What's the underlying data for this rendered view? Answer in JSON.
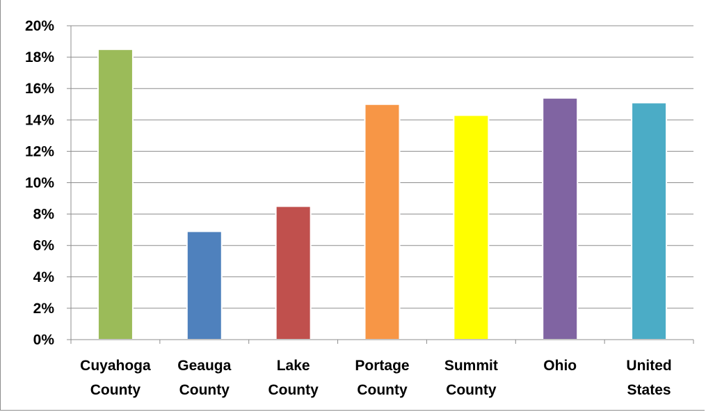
{
  "chart_data": {
    "type": "bar",
    "title": "",
    "xlabel": "",
    "ylabel": "",
    "categories": [
      [
        "Cuyahoga",
        "County"
      ],
      [
        "Geauga",
        "County"
      ],
      [
        "Lake",
        "County"
      ],
      [
        "Portage",
        "County"
      ],
      [
        "Summit",
        "County"
      ],
      [
        "Ohio"
      ],
      [
        "United",
        "States"
      ]
    ],
    "values": [
      18.5,
      6.9,
      8.5,
      15.0,
      14.3,
      15.4,
      15.1
    ],
    "colors": [
      "#9bbb59",
      "#4f81bd",
      "#c0504d",
      "#f79646",
      "#ffff00",
      "#8064a2",
      "#4bacc6"
    ],
    "ylim": [
      0,
      20
    ],
    "yticks": [
      0,
      2,
      4,
      6,
      8,
      10,
      12,
      14,
      16,
      18,
      20
    ],
    "ytick_labels": [
      "0%",
      "2%",
      "4%",
      "6%",
      "8%",
      "10%",
      "12%",
      "14%",
      "16%",
      "18%",
      "20%"
    ],
    "grid": true,
    "legend": false
  }
}
